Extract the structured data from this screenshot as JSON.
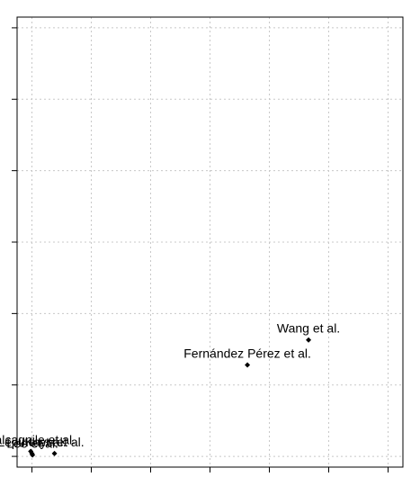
{
  "chart_data": {
    "type": "scatter",
    "title": "",
    "xlabel": "",
    "ylabel": "",
    "grid": true,
    "xlim": [
      -0.25,
      6.25
    ],
    "ylim": [
      -0.15,
      6.15
    ],
    "x_ticks": [
      0,
      1,
      2,
      3,
      4,
      5,
      6
    ],
    "y_ticks": [
      0,
      1,
      2,
      3,
      4,
      5,
      6
    ],
    "points": [
      {
        "label": "Wang et al.",
        "x": 4.66,
        "y": 1.63
      },
      {
        "label": "Fernández Pérez et al.",
        "x": 3.63,
        "y": 1.28
      },
      {
        "label": "Calcagnile et al.",
        "x": -0.02,
        "y": 0.07
      },
      {
        "label": "Lépine et al.",
        "x": 0.0,
        "y": 0.04
      },
      {
        "label": "Lee et al.",
        "x": 0.01,
        "y": 0.02
      },
      {
        "label": "Kaye et al.",
        "x": 0.38,
        "y": 0.04
      }
    ],
    "colors": {
      "point": "#000000",
      "grid": "#c8c8c8",
      "frame": "#000000"
    }
  }
}
